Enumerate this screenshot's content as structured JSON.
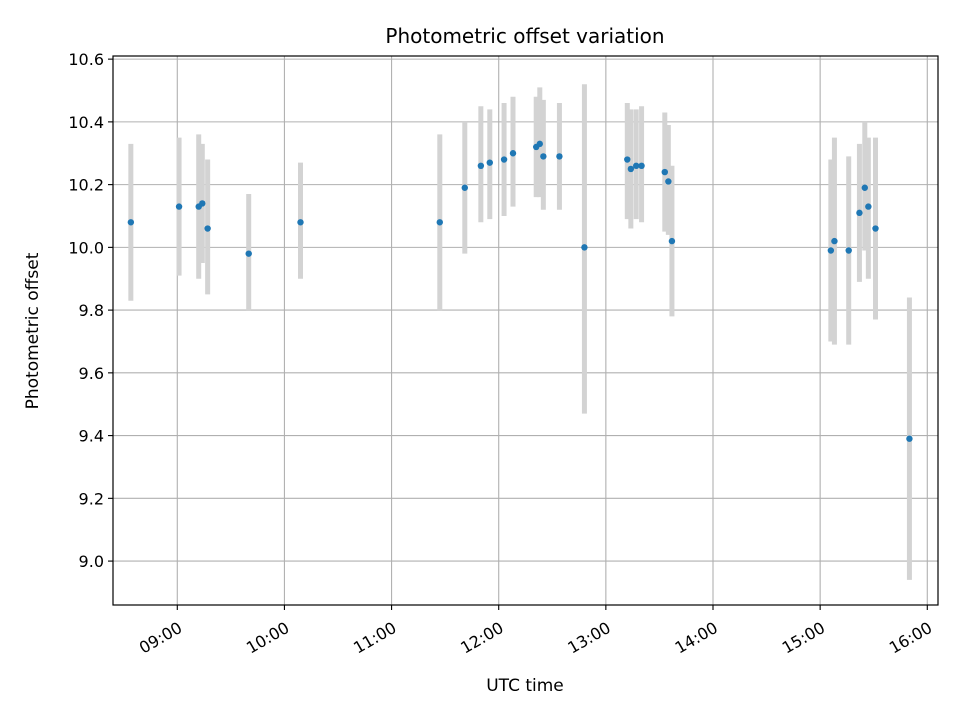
{
  "chart_data": {
    "type": "scatter",
    "title": "Photometric offset variation",
    "xlabel": "UTC time",
    "ylabel": "Photometric offset",
    "grid": true,
    "xlim": [
      "08:24",
      "16:06"
    ],
    "ylim": [
      8.86,
      10.61
    ],
    "x_ticks": [
      "09:00",
      "10:00",
      "11:00",
      "12:00",
      "13:00",
      "14:00",
      "15:00",
      "16:00"
    ],
    "y_ticks": [
      "9.0",
      "9.2",
      "9.4",
      "9.6",
      "9.8",
      "10.0",
      "10.2",
      "10.4",
      "10.6"
    ],
    "point_color": "#1f77b4",
    "errorbar_color": "#d3d3d3",
    "points": [
      {
        "x": "08:34",
        "y": 10.08,
        "low": 9.83,
        "high": 10.33
      },
      {
        "x": "09:01",
        "y": 10.13,
        "low": 9.91,
        "high": 10.35
      },
      {
        "x": "09:12",
        "y": 10.13,
        "low": 9.9,
        "high": 10.36
      },
      {
        "x": "09:14",
        "y": 10.14,
        "low": 9.95,
        "high": 10.33
      },
      {
        "x": "09:17",
        "y": 10.06,
        "low": 9.85,
        "high": 10.28
      },
      {
        "x": "09:40",
        "y": 9.98,
        "low": 9.8,
        "high": 10.17
      },
      {
        "x": "10:09",
        "y": 10.08,
        "low": 9.9,
        "high": 10.27
      },
      {
        "x": "11:27",
        "y": 10.08,
        "low": 9.8,
        "high": 10.36
      },
      {
        "x": "11:41",
        "y": 10.19,
        "low": 9.98,
        "high": 10.4
      },
      {
        "x": "11:50",
        "y": 10.26,
        "low": 10.08,
        "high": 10.45
      },
      {
        "x": "11:55",
        "y": 10.27,
        "low": 10.09,
        "high": 10.44
      },
      {
        "x": "12:03",
        "y": 10.28,
        "low": 10.1,
        "high": 10.46
      },
      {
        "x": "12:08",
        "y": 10.3,
        "low": 10.13,
        "high": 10.48
      },
      {
        "x": "12:21",
        "y": 10.32,
        "low": 10.16,
        "high": 10.48
      },
      {
        "x": "12:23",
        "y": 10.33,
        "low": 10.16,
        "high": 10.51
      },
      {
        "x": "12:25",
        "y": 10.29,
        "low": 10.12,
        "high": 10.47
      },
      {
        "x": "12:34",
        "y": 10.29,
        "low": 10.12,
        "high": 10.46
      },
      {
        "x": "12:48",
        "y": 10.0,
        "low": 9.47,
        "high": 10.52
      },
      {
        "x": "13:12",
        "y": 10.28,
        "low": 10.09,
        "high": 10.46
      },
      {
        "x": "13:14",
        "y": 10.25,
        "low": 10.06,
        "high": 10.44
      },
      {
        "x": "13:17",
        "y": 10.26,
        "low": 10.09,
        "high": 10.44
      },
      {
        "x": "13:20",
        "y": 10.26,
        "low": 10.08,
        "high": 10.45
      },
      {
        "x": "13:33",
        "y": 10.24,
        "low": 10.05,
        "high": 10.43
      },
      {
        "x": "13:35",
        "y": 10.21,
        "low": 10.04,
        "high": 10.39
      },
      {
        "x": "13:37",
        "y": 10.02,
        "low": 9.78,
        "high": 10.26
      },
      {
        "x": "15:06",
        "y": 9.99,
        "low": 9.7,
        "high": 10.28
      },
      {
        "x": "15:08",
        "y": 10.02,
        "low": 9.69,
        "high": 10.35
      },
      {
        "x": "15:16",
        "y": 9.99,
        "low": 9.69,
        "high": 10.29
      },
      {
        "x": "15:22",
        "y": 10.11,
        "low": 9.89,
        "high": 10.33
      },
      {
        "x": "15:25",
        "y": 10.19,
        "low": 9.99,
        "high": 10.4
      },
      {
        "x": "15:27",
        "y": 10.13,
        "low": 9.9,
        "high": 10.35
      },
      {
        "x": "15:31",
        "y": 10.06,
        "low": 9.77,
        "high": 10.35
      },
      {
        "x": "15:50",
        "y": 9.39,
        "low": 8.94,
        "high": 9.84
      }
    ]
  }
}
